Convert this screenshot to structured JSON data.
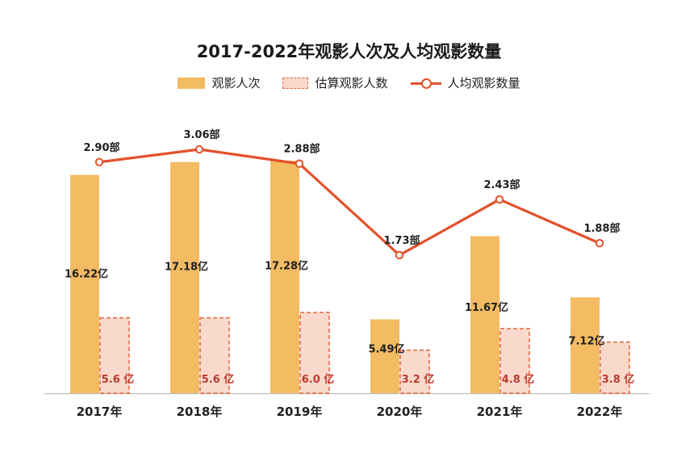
{
  "chart_data": {
    "type": "bar",
    "title": "2017-2022年观影人次及人均观影数量",
    "categories": [
      "2017年",
      "2018年",
      "2019年",
      "2020年",
      "2021年",
      "2022年"
    ],
    "series": [
      {
        "name": "观影人次",
        "type": "bar",
        "values": [
          16.22,
          17.18,
          17.28,
          5.49,
          11.67,
          7.12
        ],
        "labels": [
          "16.22亿",
          "17.18亿",
          "17.28亿",
          "5.49亿",
          "11.67亿",
          "7.12亿"
        ],
        "color": "#F3BB62"
      },
      {
        "name": "估算观影人数",
        "type": "bar",
        "style": "dashed",
        "values": [
          5.6,
          5.6,
          6.0,
          3.2,
          4.8,
          3.8
        ],
        "labels": [
          "5.6 亿",
          "5.6 亿",
          "6.0 亿",
          "3.2 亿",
          "4.8 亿",
          "3.8 亿"
        ],
        "color": "#F9D9CC",
        "stroke": "#E3643C",
        "label_color": "#C0392B"
      },
      {
        "name": "人均观影数量",
        "type": "line",
        "values": [
          2.9,
          3.06,
          2.88,
          1.73,
          2.43,
          1.88
        ],
        "labels": [
          "2.90部",
          "3.06部",
          "2.88部",
          "1.73部",
          "2.43部",
          "1.88部"
        ],
        "color": "#E4502B"
      }
    ],
    "ylim_bars": [
      0,
      18
    ],
    "ylim_line": [
      0,
      3.2
    ],
    "grid": false,
    "legend": "top-center"
  }
}
